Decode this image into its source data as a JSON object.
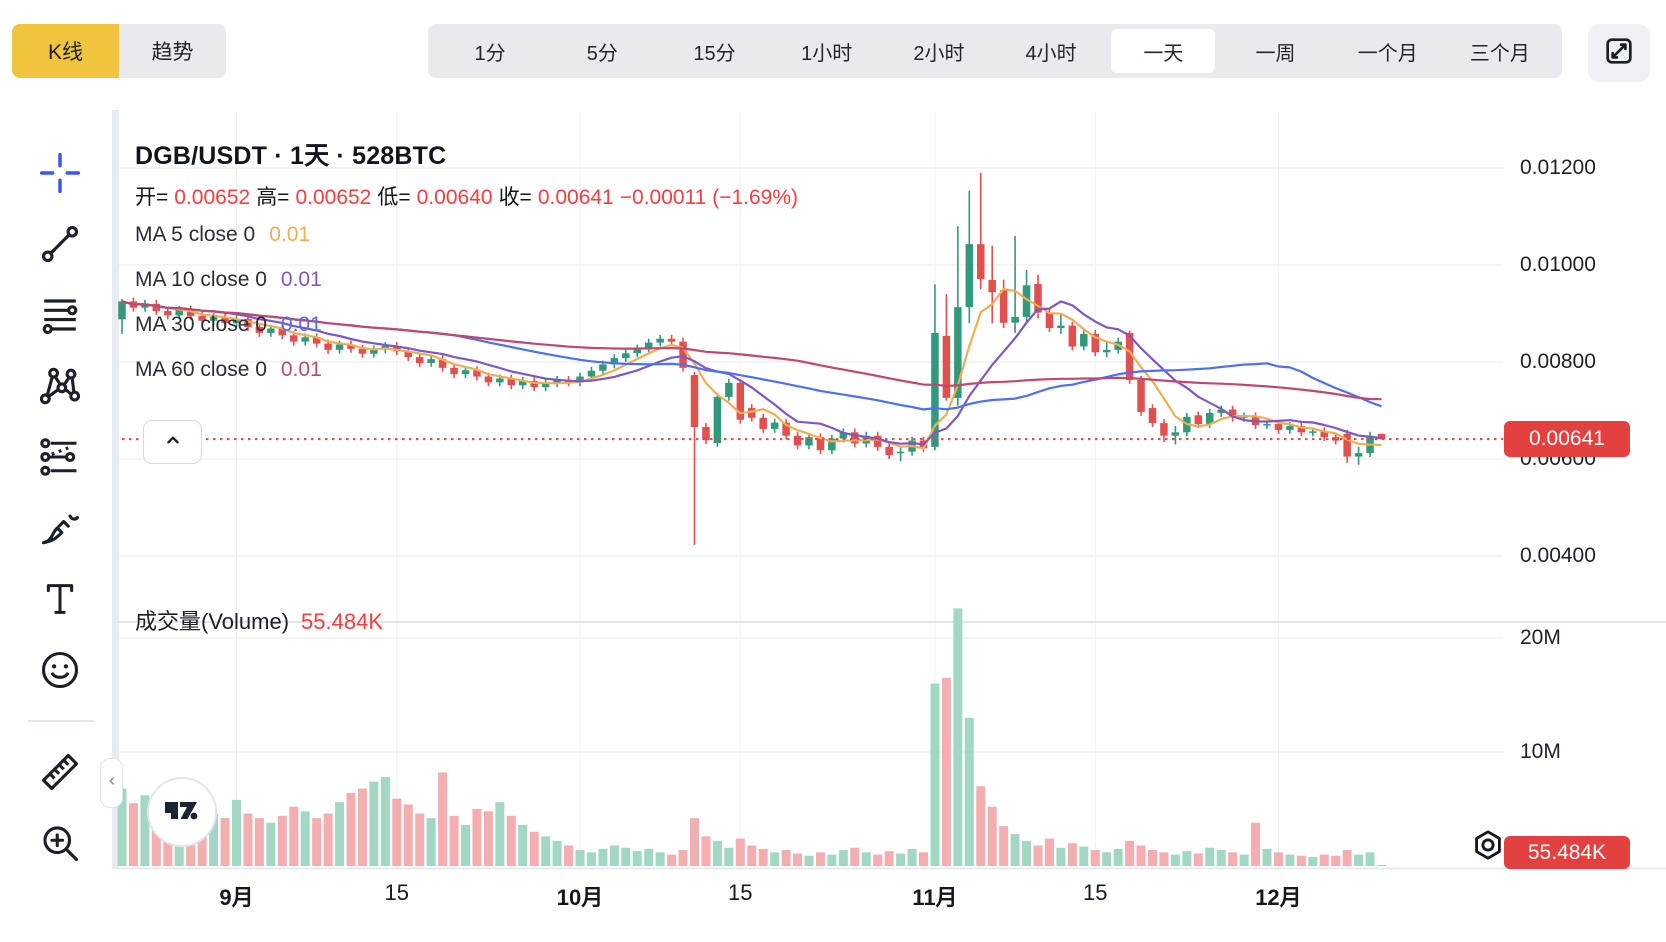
{
  "toolbar": {
    "chart_type_tabs": [
      {
        "label": "K线",
        "active": true
      },
      {
        "label": "趋势",
        "active": false
      }
    ],
    "timeframes": [
      {
        "label": "1分",
        "active": false
      },
      {
        "label": "5分",
        "active": false
      },
      {
        "label": "15分",
        "active": false
      },
      {
        "label": "1小时",
        "active": false
      },
      {
        "label": "2小时",
        "active": false
      },
      {
        "label": "4小时",
        "active": false
      },
      {
        "label": "一天",
        "active": true
      },
      {
        "label": "一周",
        "active": false
      },
      {
        "label": "一个月",
        "active": false
      },
      {
        "label": "三个月",
        "active": false
      }
    ]
  },
  "sidebar": {
    "tools": [
      {
        "name": "crosshair-tool-icon",
        "active": true
      },
      {
        "name": "trend-line-tool-icon",
        "active": false
      },
      {
        "name": "fib-retracement-tool-icon",
        "active": false
      },
      {
        "name": "xabcd-pattern-tool-icon",
        "active": false
      },
      {
        "name": "forecast-tool-icon",
        "active": false
      },
      {
        "name": "brush-tool-icon",
        "active": false
      },
      {
        "name": "text-tool-icon",
        "active": false
      },
      {
        "name": "emoji-tool-icon",
        "active": false
      },
      {
        "name": "divider",
        "active": false
      },
      {
        "name": "measure-tool-icon",
        "active": false
      },
      {
        "name": "zoom-in-tool-icon",
        "active": false
      }
    ]
  },
  "legend": {
    "title": "DGB/USDT · 1天 · 528BTC",
    "ohlc": [
      {
        "label": "开=",
        "value": "0.00652"
      },
      {
        "label": "高=",
        "value": "0.00652"
      },
      {
        "label": "低=",
        "value": "0.00640"
      },
      {
        "label": "收=",
        "value": "0.00641"
      },
      {
        "label": "",
        "value": "−0.00011 (−1.69%)"
      }
    ],
    "ma_rows": [
      {
        "label": "MA 5 close 0",
        "value": "0.01",
        "color": "#efae55"
      },
      {
        "label": "MA 10 close 0",
        "value": "0.01",
        "color": "#7e57c2"
      },
      {
        "label": "MA 30 close 0",
        "value": "0.01",
        "color": "#4d6ff0"
      },
      {
        "label": "MA 60 close 0",
        "value": "0.01",
        "color": "#c0486f"
      }
    ],
    "volume_label": "成交量(Volume)",
    "volume_value": "55.484K"
  },
  "axes": {
    "price_ticks": [
      {
        "label": "0.01200",
        "value": 0.012
      },
      {
        "label": "0.01000",
        "value": 0.01
      },
      {
        "label": "0.00800",
        "value": 0.008
      },
      {
        "label": "0.00600",
        "value": 0.006
      },
      {
        "label": "0.00400",
        "value": 0.004
      }
    ],
    "volume_ticks": [
      {
        "label": "20M",
        "value": 20
      },
      {
        "label": "10M",
        "value": 10
      }
    ],
    "date_ticks": [
      {
        "label": "9月",
        "index": 10,
        "bold": true
      },
      {
        "label": "15",
        "index": 24,
        "bold": false
      },
      {
        "label": "10月",
        "index": 40,
        "bold": true
      },
      {
        "label": "15",
        "index": 54,
        "bold": false
      },
      {
        "label": "11月",
        "index": 71,
        "bold": true
      },
      {
        "label": "15",
        "index": 85,
        "bold": false
      },
      {
        "label": "12月",
        "index": 101,
        "bold": true
      }
    ],
    "price_badge": "0.00641",
    "volume_badge": "55.484K"
  },
  "colors": {
    "accent_yellow": "#f0c43c",
    "candle_up": "#319a7d",
    "candle_down": "#e1504f",
    "volume_up": "#a2d8c3",
    "volume_down": "#f4aeb0",
    "badge_red": "#e2413f",
    "text_red": "#f0403f",
    "crosshair_blue": "#3a57e8",
    "grid": "#f0f1f5",
    "divider": "#e3e6ed"
  },
  "chart_data": {
    "type": "candlestick",
    "title": "DGB/USDT 1天 528BTC",
    "legend_position": "top-left",
    "grid": true,
    "price_range_visible": [
      0.004,
      0.0122
    ],
    "current_price": 0.00641,
    "current_volume_label": "55.484K",
    "ma_periods": [
      5,
      10,
      30,
      60
    ],
    "candles": [
      [
        0.00888,
        0.0093,
        0.00858,
        0.00925
      ],
      [
        0.00925,
        0.00933,
        0.00904,
        0.00912
      ],
      [
        0.00912,
        0.00928,
        0.00904,
        0.0092
      ],
      [
        0.0092,
        0.00928,
        0.00897,
        0.00905
      ],
      [
        0.00905,
        0.00913,
        0.00888,
        0.00896
      ],
      [
        0.00896,
        0.00916,
        0.00888,
        0.00908
      ],
      [
        0.00908,
        0.00916,
        0.00887,
        0.00895
      ],
      [
        0.00895,
        0.00903,
        0.00877,
        0.00885
      ],
      [
        0.00885,
        0.00901,
        0.00877,
        0.00893
      ],
      [
        0.00893,
        0.00901,
        0.00872,
        0.0088
      ],
      [
        0.0088,
        0.00897,
        0.00872,
        0.00889
      ],
      [
        0.00889,
        0.00897,
        0.00864,
        0.00872
      ],
      [
        0.00872,
        0.0088,
        0.00852,
        0.0086
      ],
      [
        0.0086,
        0.00877,
        0.00852,
        0.00869
      ],
      [
        0.00869,
        0.00877,
        0.00847,
        0.00855
      ],
      [
        0.00855,
        0.00863,
        0.00834,
        0.00842
      ],
      [
        0.00842,
        0.00859,
        0.00834,
        0.00851
      ],
      [
        0.00851,
        0.00859,
        0.0083,
        0.00838
      ],
      [
        0.00838,
        0.00846,
        0.00817,
        0.00825
      ],
      [
        0.00825,
        0.00844,
        0.00817,
        0.00836
      ],
      [
        0.00836,
        0.00844,
        0.00819,
        0.00827
      ],
      [
        0.00827,
        0.00835,
        0.00809,
        0.00817
      ],
      [
        0.00817,
        0.00834,
        0.00809,
        0.00826
      ],
      [
        0.00826,
        0.00841,
        0.00818,
        0.00833
      ],
      [
        0.00833,
        0.00841,
        0.00814,
        0.00822
      ],
      [
        0.00822,
        0.0083,
        0.00802,
        0.0081
      ],
      [
        0.0081,
        0.00818,
        0.0079,
        0.00798
      ],
      [
        0.00798,
        0.00814,
        0.0079,
        0.00806
      ],
      [
        0.00806,
        0.00814,
        0.0078,
        0.00788
      ],
      [
        0.00788,
        0.00796,
        0.00767,
        0.00775
      ],
      [
        0.00775,
        0.00791,
        0.00767,
        0.00783
      ],
      [
        0.00783,
        0.00791,
        0.00762,
        0.0077
      ],
      [
        0.0077,
        0.00778,
        0.0075,
        0.00758
      ],
      [
        0.00758,
        0.00774,
        0.0075,
        0.00766
      ],
      [
        0.00766,
        0.00774,
        0.00744,
        0.00752
      ],
      [
        0.00752,
        0.00769,
        0.00744,
        0.00761
      ],
      [
        0.00761,
        0.00769,
        0.0074,
        0.00748
      ],
      [
        0.00748,
        0.00764,
        0.0074,
        0.00756
      ],
      [
        0.00756,
        0.00771,
        0.00748,
        0.00763
      ],
      [
        0.00763,
        0.00771,
        0.0075,
        0.00758
      ],
      [
        0.00758,
        0.00778,
        0.0075,
        0.0077
      ],
      [
        0.0077,
        0.0079,
        0.00762,
        0.00782
      ],
      [
        0.00782,
        0.00803,
        0.00774,
        0.00795
      ],
      [
        0.00795,
        0.00816,
        0.00787,
        0.00808
      ],
      [
        0.00808,
        0.00826,
        0.008,
        0.00818
      ],
      [
        0.00818,
        0.00836,
        0.0081,
        0.00828
      ],
      [
        0.00828,
        0.00848,
        0.0082,
        0.0084
      ],
      [
        0.0084,
        0.00856,
        0.00832,
        0.00848
      ],
      [
        0.00848,
        0.00856,
        0.00834,
        0.00842
      ],
      [
        0.00842,
        0.0085,
        0.0078,
        0.00788
      ],
      [
        0.00773,
        0.0078,
        0.00423,
        0.00666
      ],
      [
        0.00666,
        0.00674,
        0.00631,
        0.00639
      ],
      [
        0.00633,
        0.00736,
        0.00625,
        0.00728
      ],
      [
        0.00728,
        0.00765,
        0.0072,
        0.00757
      ],
      [
        0.00757,
        0.00765,
        0.00673,
        0.00681
      ],
      [
        0.00705,
        0.00713,
        0.00677,
        0.00685
      ],
      [
        0.00685,
        0.00693,
        0.00654,
        0.00662
      ],
      [
        0.00662,
        0.00683,
        0.00654,
        0.00675
      ],
      [
        0.00675,
        0.00683,
        0.0064,
        0.00648
      ],
      [
        0.00648,
        0.00656,
        0.0062,
        0.00628
      ],
      [
        0.00628,
        0.00653,
        0.0062,
        0.00645
      ],
      [
        0.00645,
        0.00653,
        0.0061,
        0.00618
      ],
      [
        0.00618,
        0.0065,
        0.0061,
        0.00642
      ],
      [
        0.00642,
        0.00663,
        0.00634,
        0.00655
      ],
      [
        0.00655,
        0.00663,
        0.00624,
        0.00632
      ],
      [
        0.00632,
        0.00656,
        0.00624,
        0.00648
      ],
      [
        0.00648,
        0.00656,
        0.00617,
        0.00625
      ],
      [
        0.00625,
        0.00633,
        0.006,
        0.00608
      ],
      [
        0.00612,
        0.00625,
        0.00595,
        0.00615
      ],
      [
        0.00615,
        0.00646,
        0.00607,
        0.00638
      ],
      [
        0.00638,
        0.00646,
        0.00614,
        0.00622
      ],
      [
        0.00625,
        0.0096,
        0.00618,
        0.0086
      ],
      [
        0.00854,
        0.0094,
        0.0072,
        0.00726
      ],
      [
        0.00726,
        0.0108,
        0.0071,
        0.00913
      ],
      [
        0.00913,
        0.01153,
        0.0088,
        0.01043
      ],
      [
        0.01043,
        0.0119,
        0.0095,
        0.00971
      ],
      [
        0.00969,
        0.0104,
        0.0088,
        0.00944
      ],
      [
        0.00948,
        0.0097,
        0.0087,
        0.00881
      ],
      [
        0.00881,
        0.0106,
        0.0086,
        0.00893
      ],
      [
        0.00893,
        0.0099,
        0.0088,
        0.00958
      ],
      [
        0.00961,
        0.0098,
        0.0089,
        0.00902
      ],
      [
        0.00902,
        0.0091,
        0.00862,
        0.0087
      ],
      [
        0.0087,
        0.009,
        0.00858,
        0.00875
      ],
      [
        0.00875,
        0.00883,
        0.00824,
        0.00832
      ],
      [
        0.00832,
        0.00866,
        0.00824,
        0.00858
      ],
      [
        0.00858,
        0.00866,
        0.00812,
        0.0082
      ],
      [
        0.0082,
        0.0084,
        0.0081,
        0.00825
      ],
      [
        0.00825,
        0.0085,
        0.00817,
        0.00842
      ],
      [
        0.0086,
        0.00865,
        0.00755,
        0.00763
      ],
      [
        0.00763,
        0.00771,
        0.00689,
        0.00697
      ],
      [
        0.00705,
        0.00713,
        0.00666,
        0.00674
      ],
      [
        0.00674,
        0.00682,
        0.00635,
        0.00648
      ],
      [
        0.00648,
        0.00668,
        0.0063,
        0.00655
      ],
      [
        0.00655,
        0.00695,
        0.00647,
        0.00687
      ],
      [
        0.0069,
        0.00698,
        0.00664,
        0.00672
      ],
      [
        0.00672,
        0.00703,
        0.00664,
        0.00695
      ],
      [
        0.00695,
        0.0071,
        0.00687,
        0.00702
      ],
      [
        0.00702,
        0.0071,
        0.00677,
        0.00685
      ],
      [
        0.00685,
        0.00696,
        0.00677,
        0.00688
      ],
      [
        0.00688,
        0.00696,
        0.00662,
        0.0067
      ],
      [
        0.0067,
        0.0068,
        0.00662,
        0.00672
      ],
      [
        0.00672,
        0.0068,
        0.00652,
        0.0066
      ],
      [
        0.0066,
        0.00676,
        0.00652,
        0.00668
      ],
      [
        0.00668,
        0.00676,
        0.00647,
        0.00655
      ],
      [
        0.00655,
        0.00665,
        0.00647,
        0.00657
      ],
      [
        0.00657,
        0.00665,
        0.00637,
        0.00645
      ],
      [
        0.00645,
        0.00653,
        0.0063,
        0.00638
      ],
      [
        0.00652,
        0.0066,
        0.00592,
        0.00605
      ],
      [
        0.00605,
        0.00625,
        0.00588,
        0.00612
      ],
      [
        0.00612,
        0.00656,
        0.00604,
        0.00648
      ],
      [
        0.00652,
        0.00652,
        0.0064,
        0.00641
      ]
    ],
    "volumes_m": [
      6.8,
      5.5,
      6.2,
      5.0,
      4.6,
      5.2,
      4.4,
      4.0,
      4.6,
      4.2,
      5.8,
      4.6,
      4.2,
      3.8,
      4.4,
      5.2,
      4.8,
      4.2,
      4.6,
      5.6,
      6.4,
      6.8,
      7.4,
      7.8,
      5.9,
      5.4,
      4.6,
      4.2,
      8.2,
      4.4,
      3.6,
      5.0,
      4.8,
      5.6,
      4.4,
      3.6,
      3.0,
      2.6,
      2.2,
      1.8,
      1.4,
      1.2,
      1.5,
      1.8,
      1.6,
      1.3,
      1.5,
      1.2,
      1.0,
      1.4,
      4.2,
      2.6,
      2.2,
      1.6,
      2.4,
      1.8,
      1.5,
      1.2,
      1.4,
      1.1,
      0.9,
      1.2,
      1.0,
      1.4,
      1.6,
      1.2,
      1.0,
      1.3,
      1.1,
      1.5,
      1.2,
      16.0,
      16.5,
      22.6,
      13.0,
      7.0,
      5.2,
      3.5,
      2.8,
      2.2,
      1.8,
      2.4,
      1.6,
      2.0,
      1.7,
      1.4,
      1.2,
      1.5,
      2.2,
      1.8,
      1.4,
      1.2,
      1.0,
      1.3,
      1.1,
      1.6,
      1.4,
      1.2,
      1.0,
      3.8,
      1.5,
      1.2,
      1.0,
      0.9,
      0.8,
      1.0,
      0.9,
      1.4,
      1.0,
      1.2,
      0.055
    ]
  }
}
